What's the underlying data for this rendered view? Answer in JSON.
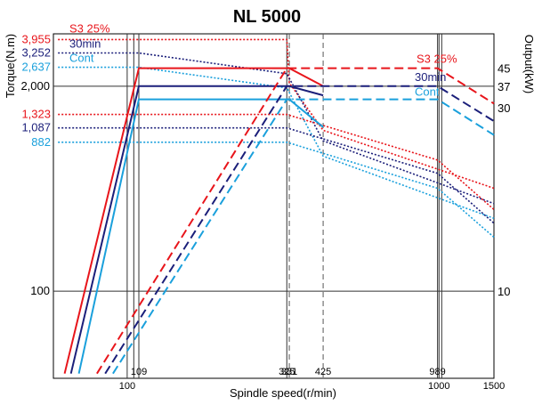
{
  "colors": {
    "s3": "#e8151b",
    "min30": "#1b1f7a",
    "cont": "#1aa0dc",
    "frame": "#000000",
    "grid": "#333333",
    "marker": "#555555"
  },
  "chart_data": {
    "type": "line",
    "title": "NL 5000",
    "xlabel": "Spindle speed(r/min)",
    "ylabel": "Torque(N.m)",
    "y2label": "Output(kW)",
    "xscale": "log",
    "yscale": "log",
    "xlim": [
      58,
      1500
    ],
    "ylim": [
      28,
      4300
    ],
    "x_tick_labels": [
      {
        "value": 100,
        "label": "100"
      },
      {
        "value": 1000,
        "label": "1000"
      },
      {
        "value": 1500,
        "label": "1500"
      }
    ],
    "x_mark_labels": [
      {
        "value": 109,
        "label": "109"
      },
      {
        "value": 325,
        "label": "325"
      },
      {
        "value": 331,
        "label": "331"
      },
      {
        "value": 425,
        "label": "425"
      },
      {
        "value": 989,
        "label": "989"
      }
    ],
    "y_tick_labels": [
      {
        "value": 100,
        "label": "100"
      },
      {
        "value": 2000,
        "label": "2,000"
      }
    ],
    "y_mark_labels": [
      {
        "value": 3955,
        "label": "3,955",
        "series": "s3"
      },
      {
        "value": 3252,
        "label": "3,252",
        "series": "min30"
      },
      {
        "value": 2637,
        "label": "2,637",
        "series": "cont"
      },
      {
        "value": 1323,
        "label": "1,323",
        "series": "s3"
      },
      {
        "value": 1087,
        "label": "1,087",
        "series": "min30"
      },
      {
        "value": 882,
        "label": "882",
        "series": "cont"
      }
    ],
    "y2_tick_labels": [
      {
        "value": 10,
        "label": "10",
        "at_torque": 100
      },
      {
        "value": 30,
        "label": "30",
        "at_torque": 1463
      },
      {
        "value": 37,
        "label": "37",
        "at_torque": 2000
      },
      {
        "value": 45,
        "label": "45",
        "at_torque": 2603
      }
    ],
    "mode_labels": {
      "s3_left": "S3 25%",
      "min30_left": "30min",
      "cont_left": "Cont",
      "s3_right": "S3 25%",
      "min30_right": "30min",
      "cont_right": "Cont"
    },
    "series": [
      {
        "key": "s3",
        "style": "dotted",
        "values": [
          [
            60,
            3955
          ],
          [
            109,
            3955
          ],
          [
            325,
            3955
          ],
          [
            331,
            2100
          ],
          [
            425,
            1050
          ],
          [
            1500,
            450
          ]
        ]
      },
      {
        "key": "min30",
        "style": "dotted",
        "values": [
          [
            60,
            3252
          ],
          [
            109,
            3252
          ],
          [
            325,
            2400
          ],
          [
            425,
            900
          ],
          [
            1500,
            360
          ]
        ]
      },
      {
        "key": "cont",
        "style": "dotted",
        "values": [
          [
            60,
            2637
          ],
          [
            109,
            2637
          ],
          [
            325,
            1950
          ],
          [
            425,
            720
          ],
          [
            1500,
            290
          ]
        ]
      },
      {
        "key": "s3",
        "style": "dotted",
        "values": [
          [
            60,
            1323
          ],
          [
            325,
            1323
          ],
          [
            989,
            680
          ],
          [
            1500,
            330
          ]
        ]
      },
      {
        "key": "min30",
        "style": "dotted",
        "values": [
          [
            60,
            1087
          ],
          [
            325,
            1087
          ],
          [
            989,
            560
          ],
          [
            1500,
            270
          ]
        ]
      },
      {
        "key": "cont",
        "style": "dotted",
        "values": [
          [
            60,
            882
          ],
          [
            325,
            882
          ],
          [
            989,
            450
          ],
          [
            1500,
            220
          ]
        ]
      },
      {
        "key": "s3",
        "style": "solid",
        "values": [
          [
            63,
            30
          ],
          [
            109,
            2603
          ],
          [
            331,
            2603
          ],
          [
            425,
            2000
          ]
        ]
      },
      {
        "key": "min30",
        "style": "solid",
        "values": [
          [
            66,
            30
          ],
          [
            109,
            2000
          ],
          [
            331,
            2000
          ],
          [
            425,
            1750
          ]
        ]
      },
      {
        "key": "cont",
        "style": "solid",
        "values": [
          [
            70,
            30
          ],
          [
            109,
            1650
          ],
          [
            331,
            1650
          ],
          [
            425,
            1100
          ]
        ]
      },
      {
        "key": "s3",
        "style": "dashed",
        "values": [
          [
            80,
            30
          ],
          [
            325,
            2603
          ],
          [
            989,
            2603
          ],
          [
            1500,
            1550
          ]
        ]
      },
      {
        "key": "min30",
        "style": "dashed",
        "values": [
          [
            85,
            30
          ],
          [
            325,
            2000
          ],
          [
            989,
            2000
          ],
          [
            1500,
            1200
          ]
        ]
      },
      {
        "key": "cont",
        "style": "dashed",
        "values": [
          [
            90,
            30
          ],
          [
            325,
            1650
          ],
          [
            989,
            1650
          ],
          [
            1500,
            980
          ]
        ]
      }
    ]
  }
}
